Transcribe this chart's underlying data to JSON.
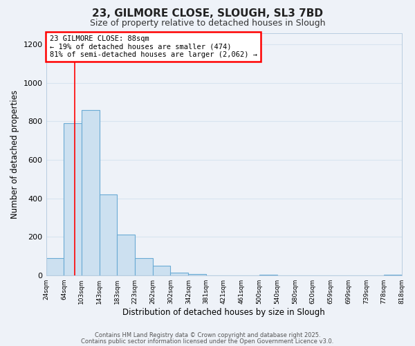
{
  "title_line1": "23, GILMORE CLOSE, SLOUGH, SL3 7BD",
  "title_line2": "Size of property relative to detached houses in Slough",
  "xlabel": "Distribution of detached houses by size in Slough",
  "ylabel": "Number of detached properties",
  "bar_edges": [
    24,
    64,
    103,
    143,
    183,
    223,
    262,
    302,
    342,
    381,
    421,
    461,
    500,
    540,
    580,
    620,
    659,
    699,
    739,
    778,
    818
  ],
  "bar_heights": [
    90,
    790,
    860,
    420,
    210,
    90,
    50,
    15,
    5,
    0,
    0,
    0,
    2,
    0,
    0,
    0,
    0,
    0,
    0,
    2
  ],
  "bar_color": "#cce0f0",
  "bar_edge_color": "#6aaad4",
  "bar_linewidth": 0.8,
  "red_line_x": 88,
  "ylim_min": 0,
  "ylim_max": 1260,
  "yticks": [
    0,
    200,
    400,
    600,
    800,
    1000,
    1200
  ],
  "annotation_title": "23 GILMORE CLOSE: 88sqm",
  "annotation_line2": "← 19% of detached houses are smaller (474)",
  "annotation_line3": "81% of semi-detached houses are larger (2,062) →",
  "background_color": "#eef2f8",
  "grid_color": "#d8e4f0",
  "footer_line1": "Contains HM Land Registry data © Crown copyright and database right 2025.",
  "footer_line2": "Contains public sector information licensed under the Open Government Licence v3.0."
}
